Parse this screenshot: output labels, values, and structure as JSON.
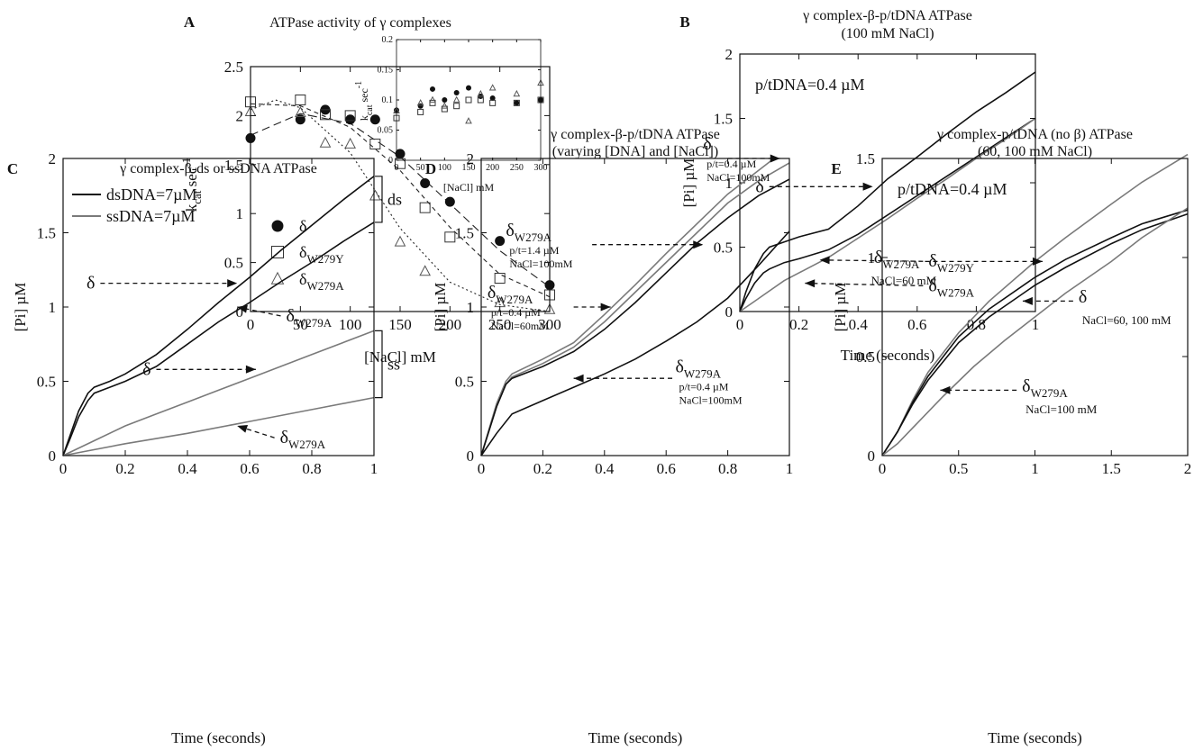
{
  "colors": {
    "black_series": "#111111",
    "gray_series": "#7a7a7a",
    "axis": "#111111"
  },
  "chart_data": [
    {
      "id": "A",
      "letter": "A",
      "type": "scatter",
      "title": "ATPase activity of γ complexes",
      "xlabel": "[NaCl] mM",
      "ylabel_main": "k",
      "ylabel_sub": "cat",
      "ylabel_rest": " sec",
      "ylabel_sup": "-1",
      "xlim": [
        0,
        300
      ],
      "ylim": [
        0,
        2.5
      ],
      "xticks": [
        0,
        50,
        100,
        150,
        200,
        250,
        300
      ],
      "yticks": [
        0,
        0.5,
        1,
        1.5,
        2,
        2.5
      ],
      "series": [
        {
          "name": "δ",
          "sub": "",
          "marker": "circle-filled",
          "x": [
            0,
            50,
            75,
            100,
            125,
            150,
            175,
            200,
            250,
            300
          ],
          "y": [
            1.77,
            1.96,
            2.06,
            1.96,
            1.96,
            1.61,
            1.31,
            1.12,
            0.72,
            0.27
          ]
        },
        {
          "name": "δ",
          "sub": "W279Y",
          "marker": "square-open",
          "x": [
            0,
            50,
            75,
            100,
            125,
            150,
            175,
            200,
            250,
            300
          ],
          "y": [
            2.14,
            2.16,
            2.01,
            2.0,
            1.71,
            1.51,
            1.06,
            0.76,
            0.34,
            0.17
          ]
        },
        {
          "name": "δ",
          "sub": "W279A",
          "marker": "triangle-open",
          "x": [
            0,
            50,
            75,
            100,
            125,
            150,
            175,
            250,
            300
          ],
          "y": [
            2.04,
            2.03,
            1.72,
            1.71,
            1.18,
            0.71,
            0.41,
            0.09,
            0.02
          ]
        }
      ],
      "fits": [
        {
          "style": "dash-long",
          "x": [
            0,
            50,
            100,
            150,
            200,
            250,
            300
          ],
          "y": [
            1.8,
            2.02,
            1.92,
            1.58,
            1.1,
            0.62,
            0.25
          ]
        },
        {
          "style": "dash-short",
          "x": [
            0,
            50,
            100,
            150,
            200,
            250,
            300
          ],
          "y": [
            2.12,
            2.1,
            1.88,
            1.44,
            0.86,
            0.38,
            0.15
          ]
        },
        {
          "style": "dot",
          "x": [
            0,
            25,
            50,
            100,
            150,
            200,
            250,
            300
          ],
          "y": [
            2.06,
            2.16,
            2.08,
            1.62,
            0.85,
            0.3,
            0.07,
            0.0
          ]
        }
      ],
      "inset": {
        "xlabel": "[NaCl] mM",
        "ylabel_main": "k",
        "ylabel_sub": "cat",
        "ylabel_rest": " sec",
        "ylabel_sup": "-1",
        "xlim": [
          0,
          300
        ],
        "ylim": [
          0,
          0.2
        ],
        "xticks": [
          0,
          50,
          100,
          150,
          200,
          250,
          300
        ],
        "yticks": [
          0,
          0.05,
          0.1,
          0.15,
          0.2
        ],
        "series": [
          {
            "marker": "circle-filled",
            "x": [
              0,
              50,
              75,
              100,
              125,
              150,
              175,
              200,
              250,
              300
            ],
            "y": [
              0.083,
              0.09,
              0.118,
              0.1,
              0.112,
              0.12,
              0.106,
              0.103,
              0.095,
              0.1
            ]
          },
          {
            "marker": "square-open",
            "x": [
              0,
              50,
              75,
              100,
              125,
              150,
              175,
              200,
              250,
              300
            ],
            "y": [
              0.07,
              0.08,
              0.095,
              0.085,
              0.09,
              0.1,
              0.1,
              0.095,
              0.095,
              0.1
            ]
          },
          {
            "marker": "triangle-open",
            "x": [
              0,
              50,
              75,
              100,
              125,
              150,
              175,
              200,
              250,
              300
            ],
            "y": [
              0.082,
              0.095,
              0.1,
              0.09,
              0.1,
              0.065,
              0.11,
              0.12,
              0.11,
              0.128
            ]
          }
        ]
      }
    },
    {
      "id": "B",
      "letter": "B",
      "type": "line",
      "title": "γ complex-β-p/tDNA ATPase",
      "subtitle": "(100 mM NaCl)",
      "xlabel": "Time (seconds)",
      "ylabel": "[Pi] µM",
      "xlim": [
        0,
        1
      ],
      "ylim": [
        0,
        2
      ],
      "xticks": [
        0,
        0.2,
        0.4,
        0.6,
        0.8,
        1
      ],
      "yticks": [
        0,
        0.5,
        1,
        1.5,
        2
      ],
      "note": "p/tDNA=0.4 µM",
      "series": [
        {
          "color": "black",
          "x": [
            0,
            0.02,
            0.05,
            0.08,
            0.1,
            0.15,
            0.2,
            0.3,
            0.4,
            0.5,
            0.6,
            0.7,
            0.8,
            0.9,
            1.0
          ],
          "y": [
            0,
            0.15,
            0.33,
            0.45,
            0.5,
            0.54,
            0.58,
            0.64,
            0.82,
            1.03,
            1.2,
            1.38,
            1.55,
            1.7,
            1.86
          ]
        },
        {
          "color": "black",
          "x": [
            0,
            0.02,
            0.05,
            0.08,
            0.1,
            0.15,
            0.2,
            0.3,
            0.4,
            0.5,
            0.6,
            0.7,
            0.8,
            0.9,
            1.0
          ],
          "y": [
            0,
            0.1,
            0.22,
            0.3,
            0.33,
            0.38,
            0.41,
            0.48,
            0.6,
            0.75,
            0.9,
            1.05,
            1.2,
            1.35,
            1.5
          ]
        },
        {
          "color": "gray",
          "x": [
            0,
            0.05,
            0.1,
            0.15,
            0.2,
            0.3,
            0.4,
            0.5,
            0.6,
            0.7,
            0.8,
            0.9,
            1.0
          ],
          "y": [
            0,
            0.08,
            0.16,
            0.24,
            0.3,
            0.42,
            0.57,
            0.72,
            0.88,
            1.03,
            1.19,
            1.34,
            1.5
          ]
        }
      ],
      "annotations": [
        {
          "label": "δ",
          "sub": "",
          "x_text": 0.1,
          "y_text": 0.97,
          "x_arrow": 0.45,
          "y_arrow": 0.97
        },
        {
          "label": "δ",
          "sub": "W279Y",
          "x_text": 0.62,
          "y_text": 0.39,
          "x_arrow": 0.27,
          "y_arrow": 0.4
        },
        {
          "label": "δ",
          "sub": "W279A",
          "x_text": 0.62,
          "y_text": 0.2,
          "x_arrow": 0.22,
          "y_arrow": 0.22
        }
      ]
    },
    {
      "id": "C",
      "letter": "C",
      "type": "line",
      "title": "γ complex-β-ds or ssDNA ATPase",
      "xlabel": "Time (seconds)",
      "ylabel": "[Pi] µM",
      "xlim": [
        0,
        1
      ],
      "ylim": [
        0,
        2
      ],
      "xticks": [
        0,
        0.2,
        0.4,
        0.6,
        0.8,
        1
      ],
      "yticks": [
        0,
        0.5,
        1,
        1.5,
        2
      ],
      "legend": [
        {
          "label": "dsDNA=7µM",
          "color": "black"
        },
        {
          "label": "ssDNA=7µM",
          "color": "gray"
        }
      ],
      "series": [
        {
          "color": "black",
          "x": [
            0,
            0.02,
            0.05,
            0.08,
            0.1,
            0.15,
            0.2,
            0.3,
            0.4,
            0.5,
            0.6,
            0.7,
            0.8,
            0.9,
            1.0
          ],
          "y": [
            0,
            0.12,
            0.3,
            0.42,
            0.46,
            0.5,
            0.55,
            0.68,
            0.85,
            1.03,
            1.2,
            1.38,
            1.55,
            1.72,
            1.88
          ]
        },
        {
          "color": "black",
          "x": [
            0,
            0.02,
            0.05,
            0.08,
            0.1,
            0.15,
            0.2,
            0.3,
            0.4,
            0.5,
            0.6,
            0.7,
            0.8,
            0.9,
            1.0
          ],
          "y": [
            0,
            0.1,
            0.26,
            0.37,
            0.42,
            0.46,
            0.5,
            0.6,
            0.75,
            0.9,
            1.03,
            1.17,
            1.3,
            1.44,
            1.57
          ]
        },
        {
          "color": "gray",
          "x": [
            0,
            0.1,
            0.2,
            0.3,
            0.4,
            0.5,
            0.6,
            0.7,
            0.8,
            0.9,
            1.0
          ],
          "y": [
            0,
            0.1,
            0.2,
            0.28,
            0.36,
            0.44,
            0.52,
            0.6,
            0.68,
            0.76,
            0.84
          ]
        },
        {
          "color": "gray",
          "x": [
            0,
            0.2,
            0.4,
            0.6,
            0.8,
            1.0
          ],
          "y": [
            0,
            0.08,
            0.15,
            0.23,
            0.31,
            0.39
          ]
        }
      ],
      "brackets": [
        {
          "label": "ds",
          "y1": 1.57,
          "y2": 1.88
        },
        {
          "label": "ss",
          "y1": 0.39,
          "y2": 0.84
        }
      ],
      "annotations": [
        {
          "label": "δ",
          "sub": "",
          "x_text": 0.12,
          "y_text": 1.16,
          "x_arrow": 0.56,
          "y_arrow": 1.16
        },
        {
          "label": "δ",
          "sub": "W279A",
          "x_text": 0.7,
          "y_text": 0.94,
          "x_arrow": 0.56,
          "y_arrow": 1.0
        },
        {
          "label": "δ",
          "sub": "",
          "x_text": 0.3,
          "y_text": 0.58,
          "x_arrow": 0.62,
          "y_arrow": 0.58
        },
        {
          "label": "δ",
          "sub": "W279A",
          "x_text": 0.68,
          "y_text": 0.12,
          "x_arrow": 0.56,
          "y_arrow": 0.2
        }
      ]
    },
    {
      "id": "D",
      "letter": "D",
      "type": "line",
      "title": "γ complex-β-p/tDNA ATPase",
      "subtitle": "(varying [DNA] and [NaCl])",
      "xlabel": "Time (seconds)",
      "ylabel": "[Pi] µM",
      "xlim": [
        0,
        1
      ],
      "ylim": [
        0,
        2
      ],
      "xticks": [
        0,
        0.2,
        0.4,
        0.6,
        0.8,
        1
      ],
      "yticks": [
        0,
        0.5,
        1,
        1.5,
        2
      ],
      "series": [
        {
          "color": "gray",
          "x": [
            0,
            0.05,
            0.08,
            0.1,
            0.2,
            0.3,
            0.4,
            0.5,
            0.6,
            0.7,
            0.8,
            0.9,
            0.95
          ],
          "y": [
            0,
            0.35,
            0.5,
            0.55,
            0.65,
            0.76,
            0.95,
            1.15,
            1.36,
            1.56,
            1.76,
            1.92,
            2.0
          ]
        },
        {
          "color": "gray",
          "x": [
            0,
            0.05,
            0.08,
            0.1,
            0.2,
            0.3,
            0.4,
            0.5,
            0.6,
            0.7,
            0.8,
            0.9,
            1.0
          ],
          "y": [
            0,
            0.33,
            0.48,
            0.53,
            0.62,
            0.73,
            0.9,
            1.1,
            1.3,
            1.5,
            1.7,
            1.85,
            1.97
          ]
        },
        {
          "color": "black",
          "x": [
            0,
            0.05,
            0.08,
            0.1,
            0.2,
            0.3,
            0.4,
            0.5,
            0.6,
            0.7,
            0.8,
            0.9,
            1.0
          ],
          "y": [
            0,
            0.33,
            0.48,
            0.52,
            0.6,
            0.7,
            0.85,
            1.03,
            1.23,
            1.43,
            1.6,
            1.75,
            1.86
          ]
        },
        {
          "color": "black",
          "x": [
            0,
            0.05,
            0.1,
            0.2,
            0.3,
            0.4,
            0.5,
            0.6,
            0.7,
            0.8,
            0.9,
            1.0
          ],
          "y": [
            0,
            0.15,
            0.28,
            0.37,
            0.46,
            0.55,
            0.65,
            0.77,
            0.9,
            1.06,
            1.28,
            1.51
          ]
        }
      ],
      "annotations": [
        {
          "label": "δ",
          "sub": "",
          "x_text": 0.8,
          "y_text": 2.0,
          "x_arrow": 0.97,
          "y_arrow": 2.0,
          "note1": "p/t=0.4 µM",
          "note2": "NaCl=100mM",
          "label_x": 0.72,
          "label_y": 2.06
        },
        {
          "label": "δ",
          "sub": "W279A",
          "x_text": 0.36,
          "y_text": 1.42,
          "x_arrow": 0.72,
          "y_arrow": 1.42,
          "note1": "p/t=1.4 µM",
          "note2": "NaCl=100mM",
          "label_x": 0.08,
          "label_y": 1.48
        },
        {
          "label": "δ",
          "sub": "W279A",
          "x_text": 0.3,
          "y_text": 1.0,
          "x_arrow": 0.42,
          "y_arrow": 1.0,
          "note1": "p/t=0.4 µM",
          "note2": "NaCl=60mM",
          "label_x": 0.02,
          "label_y": 1.06
        },
        {
          "label": "δ",
          "sub": "W279A",
          "x_text": 0.62,
          "y_text": 0.52,
          "x_arrow": 0.3,
          "y_arrow": 0.52,
          "note1": "p/t=0.4 µM",
          "note2": "NaCl=100mM",
          "label_x": 0.63,
          "label_y": 0.56
        }
      ]
    },
    {
      "id": "E",
      "letter": "E",
      "type": "line",
      "title": "γ complex-p/tDNA (no β) ATPase",
      "subtitle": "(60, 100 mM NaCl)",
      "xlabel": "Time (seconds)",
      "ylabel": "[Pi] µM",
      "xlim": [
        0,
        2
      ],
      "ylim": [
        0,
        1.5
      ],
      "xticks": [
        0,
        0.5,
        1,
        1.5,
        2
      ],
      "yticks": [
        0,
        0.5,
        1,
        1.5
      ],
      "note": "p/tDNA=0.4 µM",
      "series": [
        {
          "color": "gray",
          "x": [
            0,
            0.1,
            0.2,
            0.3,
            0.5,
            0.7,
            1.0,
            1.2,
            1.5,
            1.7,
            2.0
          ],
          "y": [
            0,
            0.12,
            0.28,
            0.42,
            0.62,
            0.78,
            0.98,
            1.1,
            1.27,
            1.38,
            1.52
          ]
        },
        {
          "color": "black",
          "x": [
            0,
            0.1,
            0.2,
            0.3,
            0.5,
            0.7,
            1.0,
            1.2,
            1.5,
            1.7,
            2.0
          ],
          "y": [
            0,
            0.12,
            0.27,
            0.4,
            0.6,
            0.74,
            0.9,
            0.99,
            1.1,
            1.17,
            1.24
          ]
        },
        {
          "color": "black",
          "x": [
            0,
            0.1,
            0.2,
            0.3,
            0.5,
            0.7,
            1.0,
            1.2,
            1.5,
            1.7,
            2.0
          ],
          "y": [
            0,
            0.12,
            0.26,
            0.38,
            0.57,
            0.7,
            0.86,
            0.95,
            1.07,
            1.14,
            1.22
          ]
        },
        {
          "color": "gray",
          "x": [
            0,
            0.1,
            0.2,
            0.4,
            0.6,
            0.8,
            1.0,
            1.2,
            1.5,
            1.7,
            2.0
          ],
          "y": [
            0,
            0.06,
            0.14,
            0.3,
            0.45,
            0.58,
            0.7,
            0.82,
            0.98,
            1.1,
            1.25
          ]
        }
      ],
      "annotations": [
        {
          "label": "δ",
          "sub": "W279A",
          "x_text": 0.28,
          "y_text": 0.98,
          "x_arrow": 1.05,
          "y_arrow": 0.98,
          "note1": "NaCl=60 mM",
          "label_x": 0.28,
          "label_y": 1.0
        },
        {
          "label": "δ",
          "sub": "",
          "x_text": 1.25,
          "y_text": 0.78,
          "x_arrow": 0.92,
          "y_arrow": 0.78,
          "note1": "NaCl=60, 100 mM",
          "label_x": 1.25,
          "label_y": 0.8
        },
        {
          "label": "δ",
          "sub": "W279A",
          "x_text": 0.88,
          "y_text": 0.33,
          "x_arrow": 0.38,
          "y_arrow": 0.33,
          "note1": "NaCl=100 mM",
          "label_x": 0.88,
          "label_y": 0.35
        }
      ]
    }
  ]
}
